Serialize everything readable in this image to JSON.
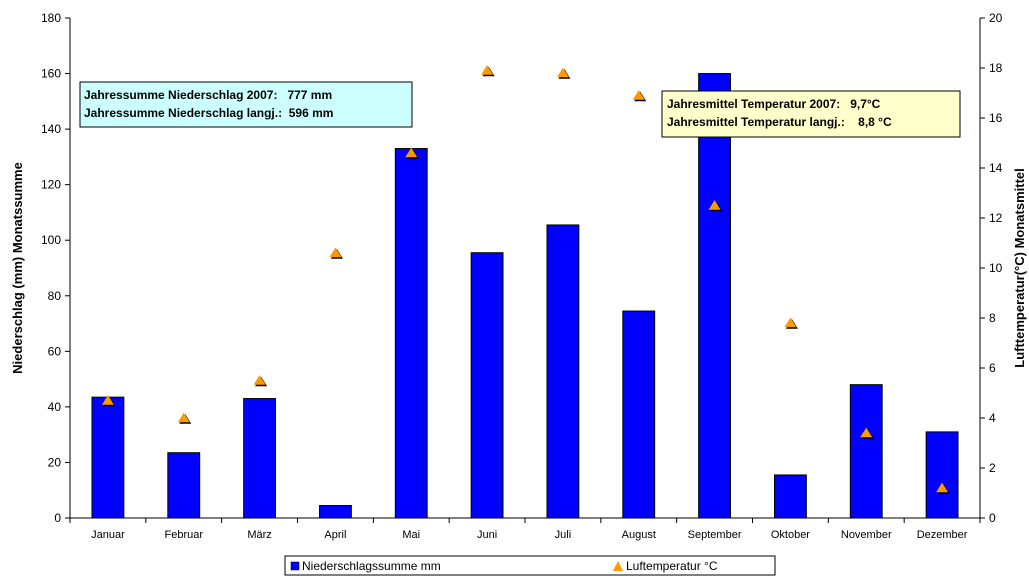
{
  "chart_data": {
    "type": "bar",
    "categories": [
      "Januar",
      "Februar",
      "März",
      "April",
      "Mai",
      "Juni",
      "Juli",
      "August",
      "September",
      "Oktober",
      "November",
      "Dezember"
    ],
    "series": [
      {
        "name": "Niederschlagssumme mm",
        "type": "bar",
        "axis": "left",
        "color": "#0000ff",
        "values": [
          43.5,
          23.5,
          43,
          4.5,
          133,
          95.5,
          105.5,
          74.5,
          160,
          15.5,
          48,
          31
        ]
      },
      {
        "name": "Luftemperatur °C",
        "type": "scatter",
        "axis": "right",
        "marker": "triangle",
        "color": "#ff9900",
        "values": [
          4.7,
          4.0,
          5.5,
          10.6,
          14.6,
          17.9,
          17.8,
          16.9,
          12.5,
          7.8,
          3.4,
          1.2
        ]
      }
    ],
    "ylabel": "Niederschlag (mm) Monatssumme",
    "y2label": "Lufttemperatur(°C) Monatsmittel",
    "ylim": [
      0,
      180
    ],
    "y2lim": [
      0,
      20
    ],
    "yticks": [
      "0",
      "20",
      "40",
      "60",
      "80",
      "100",
      "120",
      "140",
      "160",
      "180"
    ],
    "y2ticks": [
      "0",
      "2",
      "4",
      "6",
      "8",
      "10",
      "12",
      "14",
      "16",
      "18",
      "20"
    ],
    "grid": false,
    "legend_position": "bottom",
    "annotations": {
      "precip_box": {
        "line1": "Jahressumme Niederschlag 2007:   777 mm",
        "line2": "Jahressumme Niederschlag langj.:  596 mm",
        "background": "#ccffff"
      },
      "temp_box": {
        "line1": "Jahresmittel Temperatur 2007:   9,7°C",
        "line2": "Jahresmittel Temperatur langj.:    8,8 °C",
        "background": "#ffffcc"
      }
    }
  }
}
